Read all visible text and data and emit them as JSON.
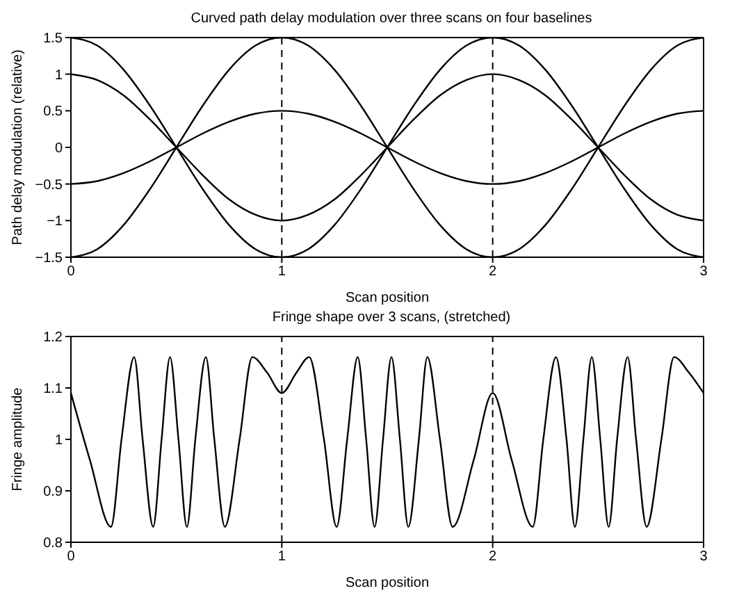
{
  "chart_data": [
    {
      "type": "line",
      "title": "Curved path delay modulation over three scans on four baselines",
      "xlabel": "Scan position",
      "ylabel": "Path delay modulation (relative)",
      "x": [
        0,
        0.125,
        0.25,
        0.375,
        0.5,
        0.625,
        0.75,
        0.875,
        1,
        1.125,
        1.25,
        1.375,
        1.5,
        1.625,
        1.75,
        1.875,
        2,
        2.125,
        2.25,
        2.375,
        2.5,
        2.625,
        2.75,
        2.875,
        3
      ],
      "series": [
        {
          "color": "#000000",
          "values": [
            1.5,
            1.39,
            1.06,
            0.57,
            0,
            -0.57,
            -1.06,
            -1.39,
            -1.5,
            -1.39,
            -1.06,
            -0.57,
            0,
            0.57,
            1.06,
            1.39,
            1.5,
            1.39,
            1.06,
            0.57,
            0,
            -0.57,
            -1.06,
            -1.39,
            -1.5
          ]
        },
        {
          "color": "#000000",
          "values": [
            1,
            0.92,
            0.71,
            0.38,
            0,
            -0.38,
            -0.71,
            -0.92,
            -1,
            -0.92,
            -0.71,
            -0.38,
            0,
            0.38,
            0.71,
            0.92,
            1,
            0.92,
            0.71,
            0.38,
            0,
            -0.38,
            -0.71,
            -0.92,
            -1
          ]
        },
        {
          "color": "#000000",
          "values": [
            -0.5,
            -0.46,
            -0.35,
            -0.19,
            0,
            0.19,
            0.35,
            0.46,
            0.5,
            0.46,
            0.35,
            0.19,
            0,
            -0.19,
            -0.35,
            -0.46,
            -0.5,
            -0.46,
            -0.35,
            -0.19,
            0,
            0.19,
            0.35,
            0.46,
            0.5
          ]
        },
        {
          "color": "#000000",
          "values": [
            -1.5,
            -1.39,
            -1.06,
            -0.57,
            0,
            0.57,
            1.06,
            1.39,
            1.5,
            1.39,
            1.06,
            0.57,
            0,
            -0.57,
            -1.06,
            -1.39,
            -1.5,
            -1.39,
            -1.06,
            -0.57,
            0,
            0.57,
            1.06,
            1.39,
            1.5
          ]
        }
      ],
      "xlim": [
        0,
        3
      ],
      "xticks": [
        0,
        1,
        2,
        3
      ],
      "ylim": [
        -1.5,
        1.5
      ],
      "yticks": [
        -1.5,
        -1,
        -0.5,
        0,
        0.5,
        1,
        1.5
      ],
      "grid": false,
      "legend": false,
      "marker": "none",
      "line_style": "solid",
      "ref_lines": [
        {
          "axis": "x",
          "value": 1,
          "color": "#000000",
          "line_style": "dashed"
        },
        {
          "axis": "x",
          "value": 2,
          "color": "#000000",
          "line_style": "dashed"
        }
      ]
    },
    {
      "type": "line",
      "title": "Fringe shape over 3 scans, (stretched)",
      "xlabel": "Scan position",
      "ylabel": "Fringe amplitude",
      "x": [
        0,
        0.09,
        0.19,
        0.24,
        0.3,
        0.34,
        0.39,
        0.43,
        0.47,
        0.51,
        0.55,
        0.59,
        0.64,
        0.68,
        0.73,
        0.8,
        0.86,
        0.93,
        1,
        1.07,
        1.13,
        1.2,
        1.26,
        1.31,
        1.36,
        1.4,
        1.44,
        1.48,
        1.52,
        1.56,
        1.6,
        1.65,
        1.69,
        1.75,
        1.81,
        1.91,
        2,
        2.09,
        2.19,
        2.24,
        2.3,
        2.35,
        2.39,
        2.43,
        2.47,
        2.51,
        2.55,
        2.59,
        2.64,
        2.68,
        2.73,
        2.8,
        2.86,
        2.93,
        3
      ],
      "series": [
        {
          "color": "#000000",
          "values": [
            1.09,
            0.96,
            0.83,
            1,
            1.16,
            1,
            0.83,
            1,
            1.16,
            1,
            0.83,
            1,
            1.16,
            1,
            0.83,
            1,
            1.16,
            1.13,
            1.09,
            1.13,
            1.16,
            1,
            0.83,
            1,
            1.16,
            1,
            0.83,
            1,
            1.16,
            1,
            0.83,
            1,
            1.16,
            1,
            0.83,
            0.96,
            1.09,
            0.96,
            0.83,
            1,
            1.16,
            1,
            0.83,
            1,
            1.16,
            1,
            0.83,
            1,
            1.16,
            1,
            0.83,
            1,
            1.16,
            1.13,
            1.09
          ]
        }
      ],
      "xlim": [
        0,
        3
      ],
      "xticks": [
        0,
        1,
        2,
        3
      ],
      "ylim": [
        0.8,
        1.2
      ],
      "yticks": [
        0.8,
        0.9,
        1,
        1.1,
        1.2
      ],
      "grid": false,
      "legend": false,
      "marker": "none",
      "line_style": "solid",
      "ref_lines": [
        {
          "axis": "x",
          "value": 1,
          "color": "#000000",
          "line_style": "dashed"
        },
        {
          "axis": "x",
          "value": 2,
          "color": "#000000",
          "line_style": "dashed"
        }
      ]
    }
  ]
}
